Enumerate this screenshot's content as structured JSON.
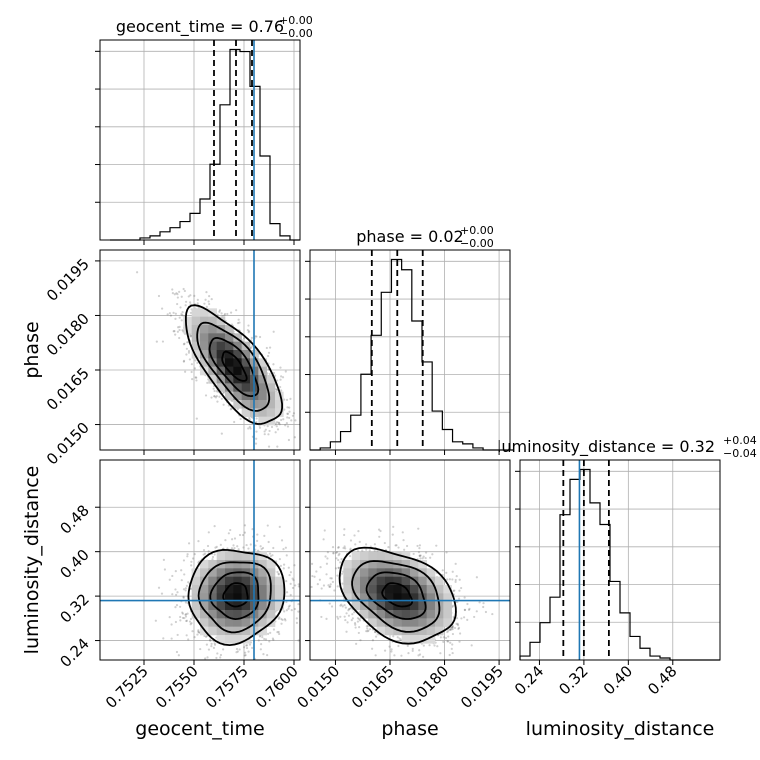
{
  "chart_data": {
    "type": "corner",
    "parameters": [
      {
        "name": "geocent_time",
        "axis_label": "geocent_time",
        "title": "geocent_time = 0.76",
        "title_sup": "+0.00",
        "title_sub": "−0.00",
        "range": [
          0.7503,
          0.7603
        ],
        "ticks": [
          0.7525,
          0.755,
          0.7575,
          0.76
        ],
        "tick_labels": [
          "0.7525",
          "0.7550",
          "0.7575",
          "0.7600"
        ],
        "truth": 0.758,
        "quantiles": [
          0.756,
          0.7571,
          0.7579
        ],
        "histogram": {
          "bins": [
            0.7508,
            0.7513,
            0.7518,
            0.7523,
            0.7528,
            0.7533,
            0.7538,
            0.7543,
            0.7548,
            0.7553,
            0.7558,
            0.7563,
            0.7568,
            0.7573,
            0.7578,
            0.7583,
            0.7588,
            0.7593,
            0.7598,
            0.7603
          ],
          "counts": [
            0,
            0,
            0,
            1,
            2,
            4,
            6,
            9,
            13,
            20,
            37,
            66,
            93,
            92,
            75,
            41,
            8,
            2,
            0
          ]
        }
      },
      {
        "name": "phase",
        "axis_label": "phase",
        "title": "phase = 0.02",
        "title_sup": "+0.00",
        "title_sub": "−0.00",
        "range": [
          0.0143,
          0.0198
        ],
        "ticks": [
          0.015,
          0.0165,
          0.018,
          0.0195
        ],
        "tick_labels": [
          "0.0150",
          "0.0165",
          "0.0180",
          "0.0195"
        ],
        "truth": null,
        "quantiles": [
          0.016,
          0.0167,
          0.0174
        ],
        "histogram": {
          "bins": [
            0.0143,
            0.01458,
            0.01486,
            0.01514,
            0.01542,
            0.0157,
            0.01598,
            0.01626,
            0.01654,
            0.01682,
            0.0171,
            0.01738,
            0.01766,
            0.01794,
            0.01822,
            0.0185,
            0.01878,
            0.01906,
            0.01934,
            0.01962,
            0.0199
          ],
          "counts": [
            0,
            1,
            4,
            9,
            17,
            37,
            56,
            77,
            93,
            88,
            63,
            43,
            19,
            10,
            4,
            3,
            1,
            0,
            0,
            0
          ]
        }
      },
      {
        "name": "luminosity_distance",
        "axis_label": "luminosity_distance",
        "title": "luminosity_distance = 0.32",
        "title_sup": "+0.04",
        "title_sub": "−0.04",
        "range": [
          0.205,
          0.565
        ],
        "ticks": [
          0.24,
          0.32,
          0.4,
          0.48
        ],
        "tick_labels": [
          "0.24",
          "0.32",
          "0.40",
          "0.48"
        ],
        "truth": 0.312,
        "quantiles": [
          0.283,
          0.32,
          0.365
        ],
        "histogram": {
          "bins": [
            0.205,
            0.223,
            0.241,
            0.259,
            0.277,
            0.295,
            0.313,
            0.331,
            0.349,
            0.367,
            0.385,
            0.403,
            0.421,
            0.439,
            0.457,
            0.475,
            0.493,
            0.511,
            0.529,
            0.547,
            0.565
          ],
          "counts": [
            2,
            9,
            19,
            32,
            74,
            92,
            97,
            80,
            69,
            40,
            24,
            12,
            6,
            2,
            1,
            0,
            0,
            0,
            0,
            0
          ]
        }
      }
    ],
    "pairs": [
      {
        "x": "geocent_time",
        "y": "phase",
        "mean": [
          0.757,
          0.0166
        ],
        "std": [
          0.0012,
          0.0008
        ],
        "rho": -0.72,
        "truth": [
          0.758,
          null
        ]
      },
      {
        "x": "geocent_time",
        "y": "luminosity_distance",
        "mean": [
          0.7571,
          0.322
        ],
        "std": [
          0.0012,
          0.042
        ],
        "rho": 0.05,
        "truth": [
          0.758,
          0.312
        ]
      },
      {
        "x": "phase",
        "y": "luminosity_distance",
        "mean": [
          0.0167,
          0.322
        ],
        "std": [
          0.0008,
          0.042
        ],
        "rho": -0.35,
        "truth": [
          null,
          0.312
        ]
      }
    ],
    "contour_levels_sigma": [
      0.5,
      1.0,
      1.5,
      2.0
    ],
    "grid": true,
    "truth_color": "#1f77b4"
  }
}
